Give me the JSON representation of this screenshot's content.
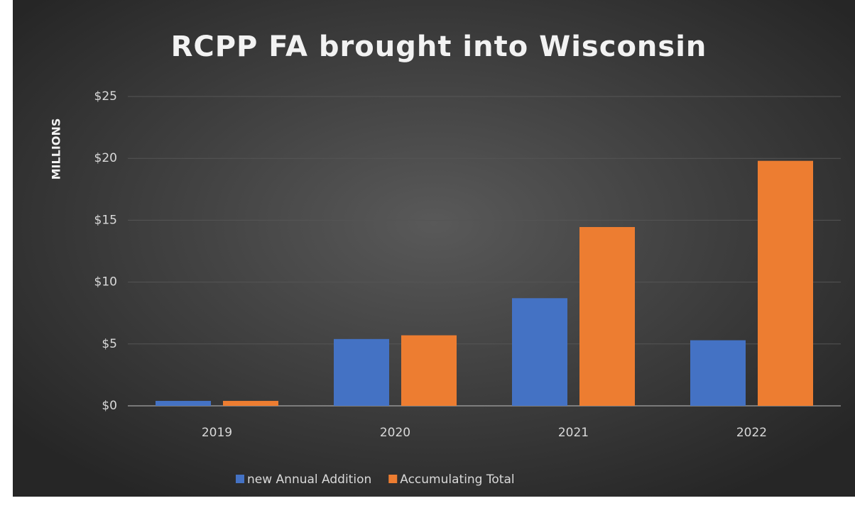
{
  "chart_data": {
    "type": "bar",
    "title": "RCPP FA brought into Wisconsin",
    "y_label": "MILLIONS",
    "categories": [
      "2019",
      "2020",
      "2021",
      "2022"
    ],
    "series": [
      {
        "name": "new Annual Addition",
        "color": "#4472c4",
        "values": [
          0.4,
          5.4,
          8.7,
          5.3
        ]
      },
      {
        "name": "Accumulating Total",
        "color": "#ed7d31",
        "values": [
          0.4,
          5.7,
          14.45,
          19.8
        ]
      }
    ],
    "ylim": [
      0,
      25
    ],
    "yticks": [
      {
        "value": 0,
        "label": "$0"
      },
      {
        "value": 5,
        "label": "$5"
      },
      {
        "value": 10,
        "label": "$10"
      },
      {
        "value": 15,
        "label": "$15"
      },
      {
        "value": 20,
        "label": "$20"
      },
      {
        "value": 25,
        "label": "$25"
      }
    ],
    "grid": true,
    "legend": "bottom"
  }
}
